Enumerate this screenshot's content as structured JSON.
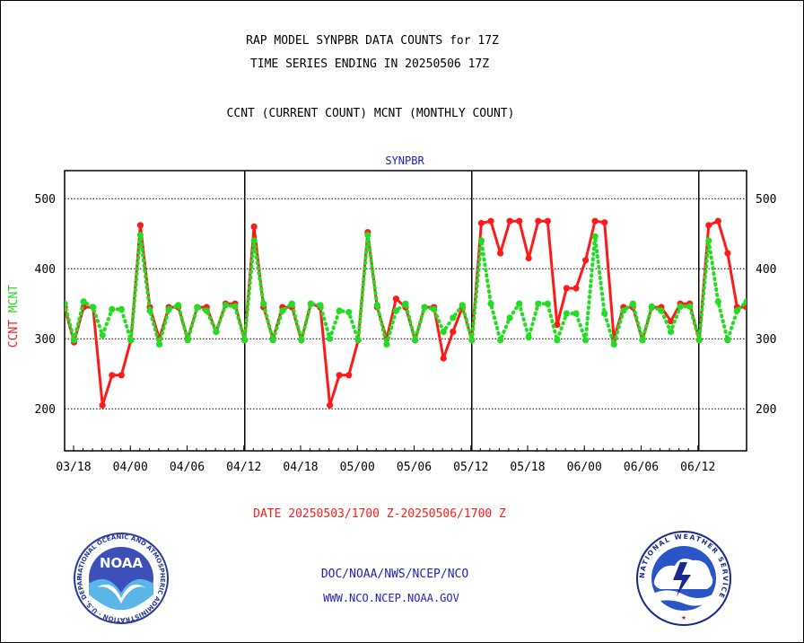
{
  "header": {
    "line1": "RAP MODEL SYNPBR DATA COUNTS for 17Z",
    "line2": "TIME SERIES ENDING IN 20250506 17Z",
    "line3": "CCNT (CURRENT COUNT) MCNT (MONTHLY COUNT)"
  },
  "footer": {
    "date_range": "DATE 20250503/1700 Z-20250506/1700 Z",
    "org": "DOC/NOAA/NWS/NCEP/NCO",
    "url": "WWW.NCO.NCEP.NOAA.GOV"
  },
  "logos": {
    "left": {
      "name": "noaa-logo",
      "text": "NOAA",
      "ring_text": "NATIONAL OCEANIC AND ATMOSPHERIC ADMINISTRATION · U.S. DEPARTMENT OF COMMERCE"
    },
    "right": {
      "name": "nws-logo",
      "ring_text": "NATIONAL WEATHER SERVICE"
    }
  },
  "colors": {
    "ccnt": "#ff1a1a",
    "mcnt": "#22dd22",
    "title_blue": "#2020c0",
    "date_red": "#ff1a1a"
  },
  "chart_data": {
    "type": "line",
    "title": "SYNPBR",
    "ylabel": [
      "CCNT",
      "MCNT"
    ],
    "ylim": [
      140,
      540
    ],
    "yticks": [
      200,
      300,
      400,
      500
    ],
    "xticks": [
      "03/18",
      "04/00",
      "04/06",
      "04/12",
      "04/18",
      "05/00",
      "05/06",
      "05/12",
      "05/18",
      "06/00",
      "06/06",
      "06/12"
    ],
    "day_dividers": [
      "04/12",
      "05/12",
      "06/12"
    ],
    "series": [
      {
        "name": "CCNT",
        "color": "#ff1a1a",
        "style": "solid",
        "values": [
          345,
          295,
          345,
          345,
          205,
          248,
          248,
          298,
          462,
          345,
          300,
          345,
          345,
          300,
          345,
          345,
          310,
          350,
          350,
          298,
          460,
          345,
          300,
          345,
          345,
          298,
          350,
          345,
          205,
          248,
          248,
          298,
          452,
          345,
          300,
          357,
          345,
          298,
          345,
          345,
          272,
          310,
          345,
          298,
          465,
          468,
          422,
          468,
          468,
          415,
          468,
          468,
          320,
          372,
          372,
          412,
          468,
          466,
          300,
          345,
          345,
          298,
          345,
          345,
          325,
          350,
          350,
          298,
          462,
          468,
          422,
          345,
          345
        ]
      },
      {
        "name": "MCNT",
        "color": "#22dd22",
        "style": "dotted",
        "values": [
          350,
          298,
          353,
          345,
          305,
          342,
          342,
          298,
          448,
          340,
          292,
          342,
          348,
          298,
          345,
          340,
          310,
          348,
          346,
          298,
          440,
          350,
          298,
          340,
          350,
          298,
          350,
          348,
          300,
          340,
          338,
          298,
          448,
          348,
          292,
          340,
          350,
          298,
          345,
          342,
          310,
          330,
          348,
          298,
          440,
          350,
          298,
          330,
          350,
          302,
          350,
          350,
          298,
          336,
          336,
          298,
          446,
          336,
          292,
          340,
          350,
          298,
          346,
          340,
          310,
          346,
          346,
          298,
          440,
          353,
          298,
          340,
          353
        ]
      }
    ]
  }
}
